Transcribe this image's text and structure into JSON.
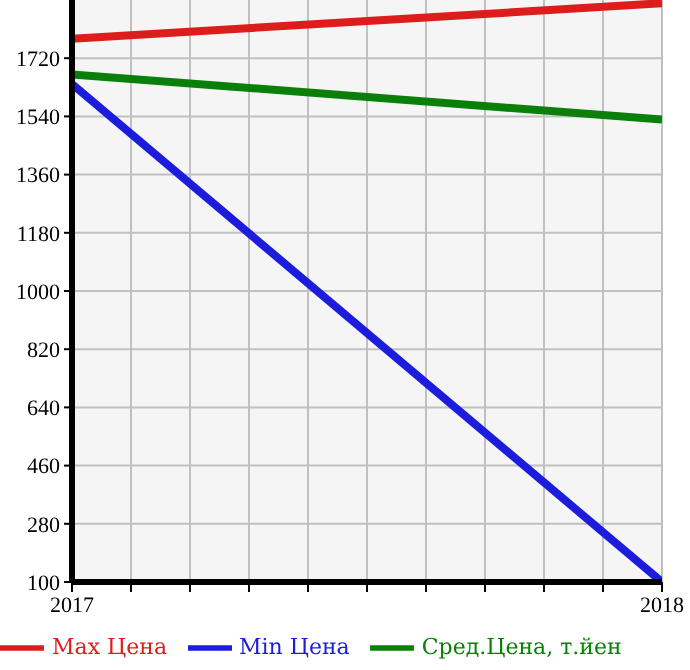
{
  "chart_data": {
    "type": "line",
    "x": [
      2017,
      2018
    ],
    "series": [
      {
        "name": "Max Цена",
        "color": "#dd1c1c",
        "values": [
          1780,
          1890
        ]
      },
      {
        "name": "Min Цена",
        "color": "#1c1cdd",
        "values": [
          1640,
          100
        ]
      },
      {
        "name": "Сред.Цена, т.йен",
        "color": "#0a800a",
        "values": [
          1670,
          1530
        ]
      }
    ],
    "xlim": [
      2017,
      2018
    ],
    "xticks": [
      2017,
      {
        "value": 2017.1,
        "label": null
      },
      {
        "value": 2017.2,
        "label": null
      },
      {
        "value": 2017.3,
        "label": null
      },
      {
        "value": 2017.4,
        "label": null
      },
      {
        "value": 2017.5,
        "label": null
      },
      {
        "value": 2017.6,
        "label": null
      },
      {
        "value": 2017.7,
        "label": null
      },
      {
        "value": 2017.8,
        "label": null
      },
      {
        "value": 2017.9,
        "label": null
      },
      2018
    ],
    "ylim": [
      100,
      1900
    ],
    "yticks": [
      100,
      280,
      460,
      640,
      820,
      1000,
      1180,
      1360,
      1540,
      1720
    ],
    "grid": true,
    "legend": "bottom",
    "marker": "none",
    "line_style": "solid"
  }
}
